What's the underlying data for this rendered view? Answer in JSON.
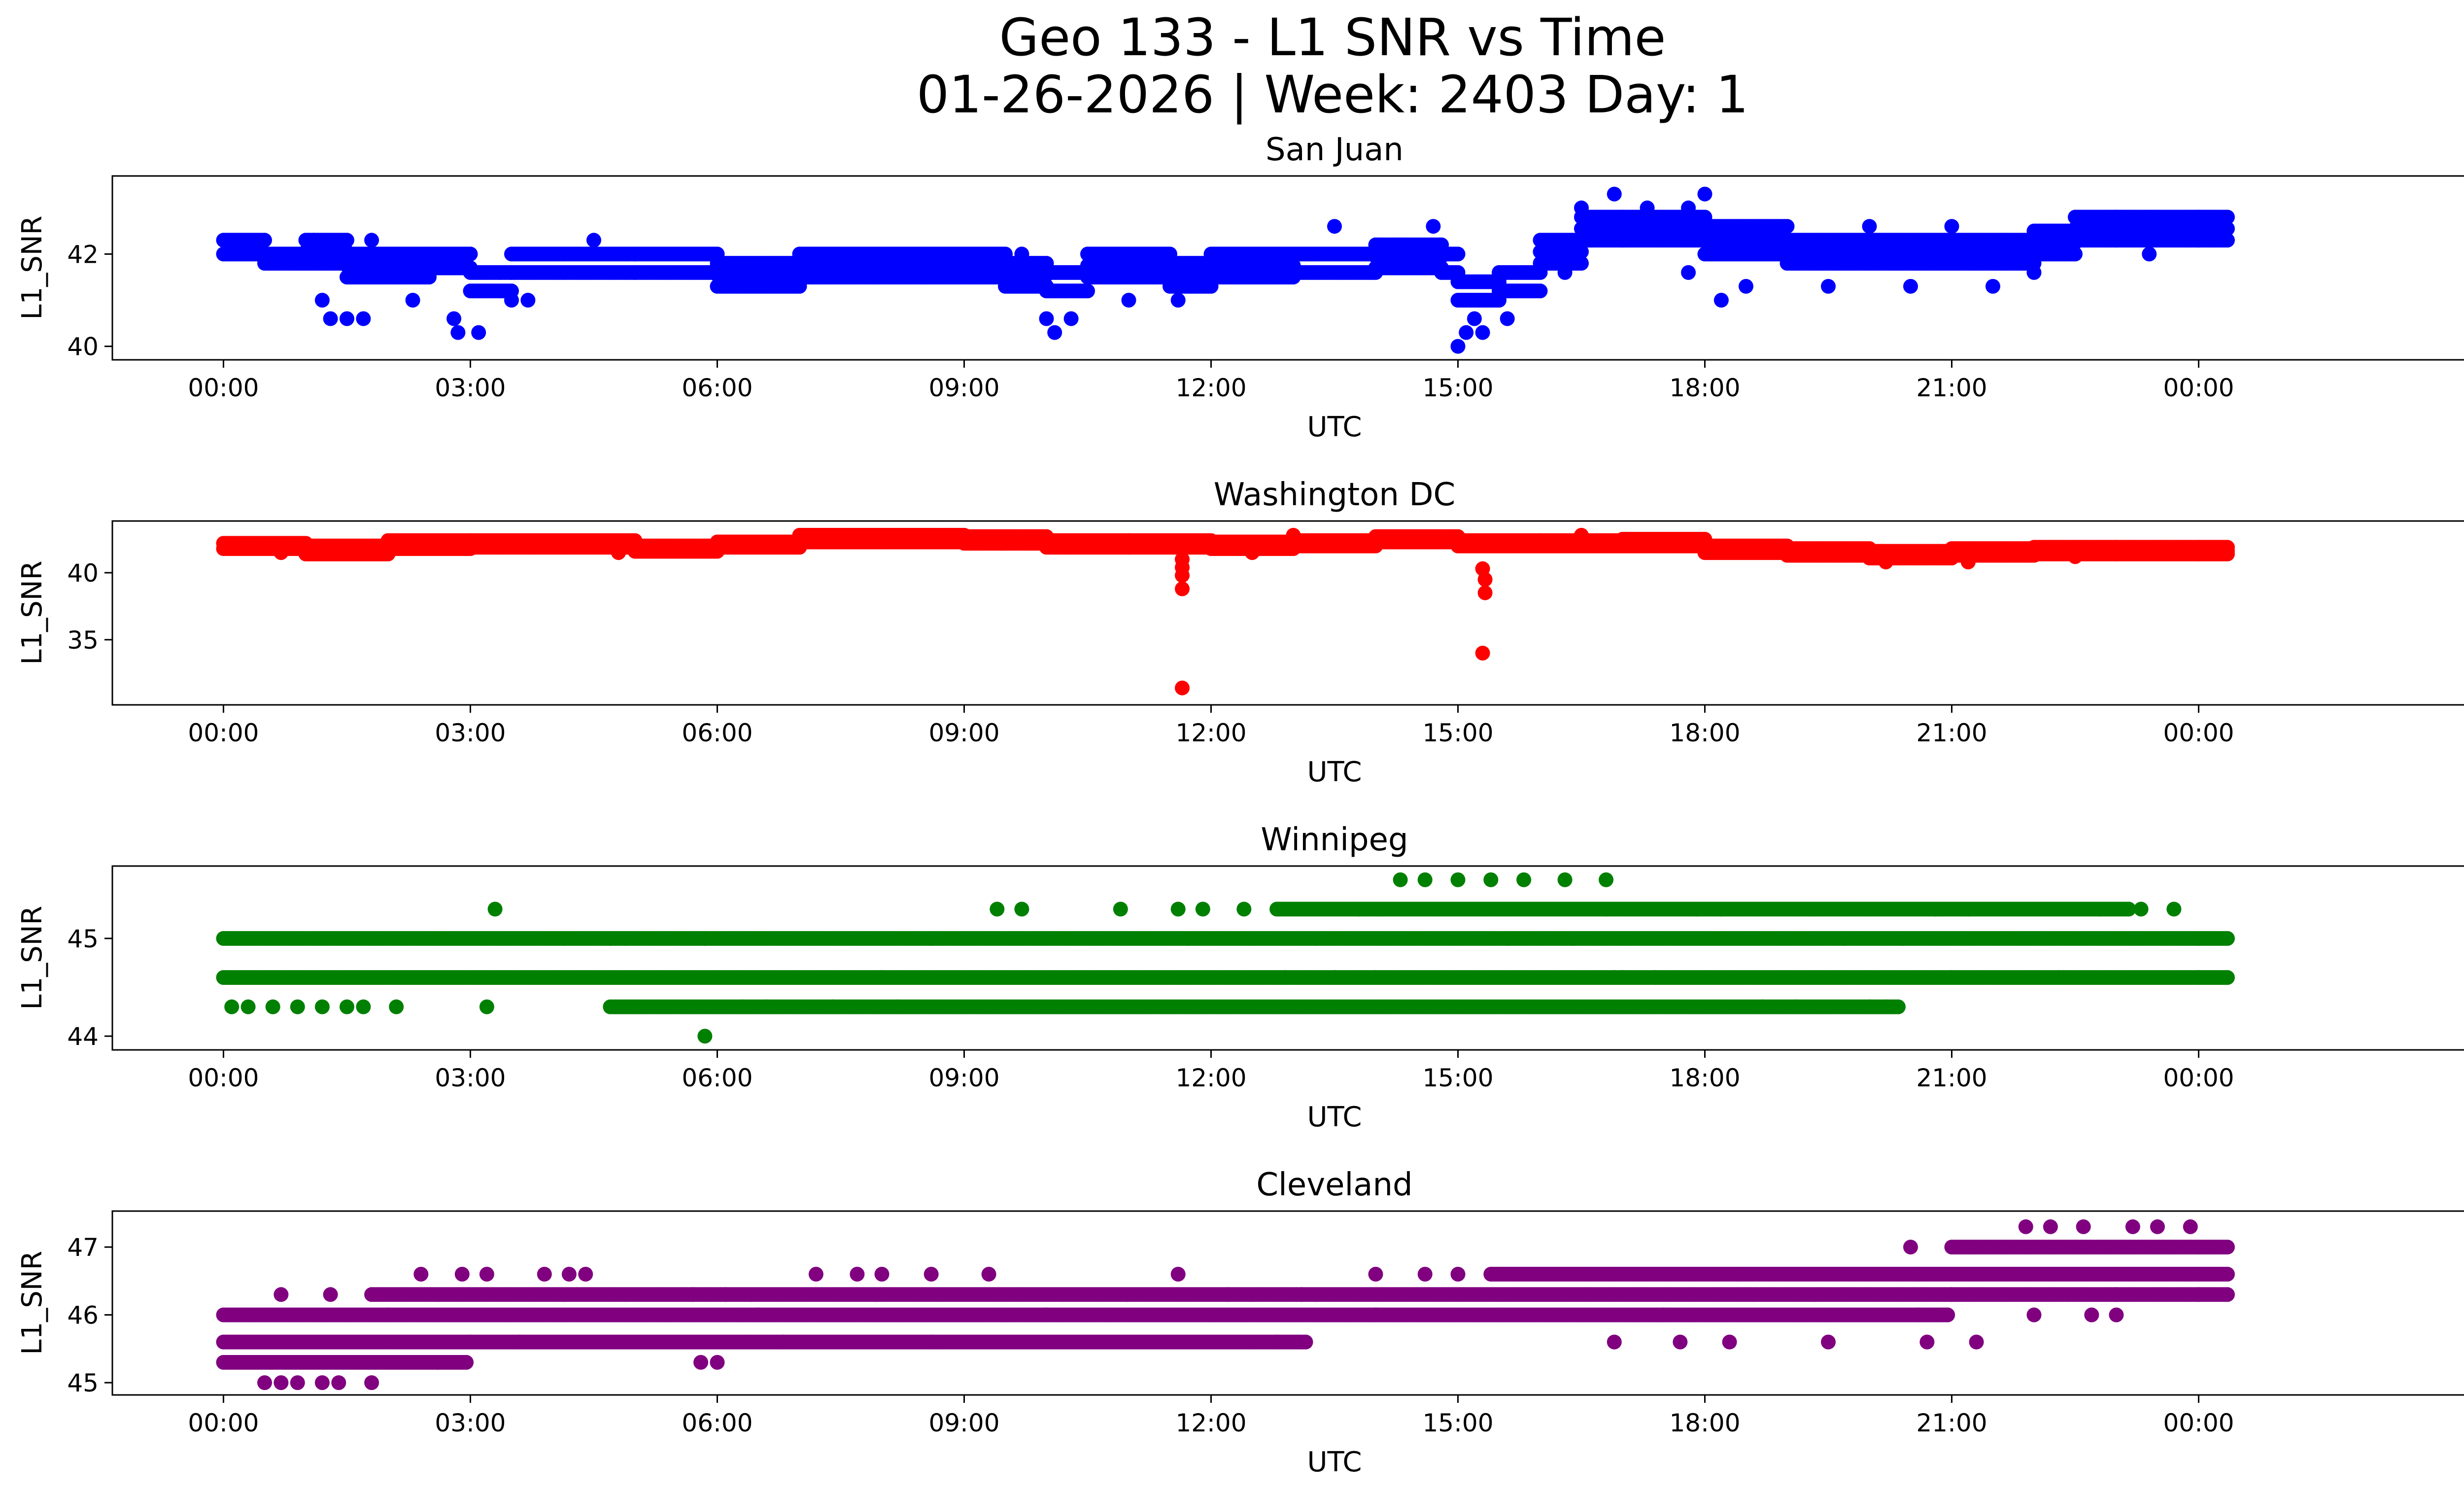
{
  "figure": {
    "title_line1": "Geo 133 - L1 SNR vs Time",
    "title_line2": "01-26-2026 | Week: 2403 Day: 1"
  },
  "chart_data": [
    {
      "type": "scatter",
      "title": "San Juan",
      "xlabel": "UTC",
      "ylabel": "L1_SNR",
      "color": "#0000ff",
      "xlim": [
        -1.35,
        28.35
      ],
      "ylim": [
        39.9,
        43.5
      ],
      "xticks": [
        0,
        3,
        6,
        9,
        12,
        15,
        18,
        21,
        24
      ],
      "xticklabels": [
        "00:00",
        "03:00",
        "06:00",
        "09:00",
        "12:00",
        "15:00",
        "18:00",
        "21:00",
        "00:00"
      ],
      "yticks": [
        40,
        42
      ],
      "yticklabels": [
        "40",
        "42"
      ],
      "segments": [
        [
          0.0,
          42.0,
          42.3
        ],
        [
          0.5,
          41.8,
          42.0
        ],
        [
          1.0,
          41.8,
          42.3
        ],
        [
          1.5,
          41.5,
          42.0
        ],
        [
          2.5,
          41.7,
          42.0
        ],
        [
          3.0,
          41.2,
          41.6
        ],
        [
          3.5,
          41.6,
          42.0
        ],
        [
          5.0,
          41.6,
          42.0
        ],
        [
          6.0,
          41.3,
          41.8
        ],
        [
          7.0,
          41.5,
          42.0
        ],
        [
          8.5,
          41.5,
          42.0
        ],
        [
          9.5,
          41.3,
          41.8
        ],
        [
          10.0,
          41.2,
          41.6
        ],
        [
          10.5,
          41.5,
          42.0
        ],
        [
          11.5,
          41.3,
          41.8
        ],
        [
          12.0,
          41.5,
          42.0
        ],
        [
          13.0,
          41.6,
          42.0
        ],
        [
          14.0,
          41.7,
          42.2
        ],
        [
          14.8,
          41.6,
          42.0
        ],
        [
          15.0,
          41.0,
          41.4
        ],
        [
          15.5,
          41.2,
          41.6
        ],
        [
          16.0,
          41.8,
          42.3
        ],
        [
          16.5,
          42.3,
          42.8
        ],
        [
          17.0,
          42.3,
          42.8
        ],
        [
          18.0,
          42.0,
          42.6
        ],
        [
          19.0,
          41.8,
          42.3
        ],
        [
          20.0,
          41.8,
          42.3
        ],
        [
          21.0,
          41.8,
          42.3
        ],
        [
          22.0,
          42.0,
          42.5
        ],
        [
          22.5,
          42.3,
          42.8
        ],
        [
          23.0,
          42.3,
          42.8
        ],
        [
          24.0,
          42.3,
          42.8
        ]
      ],
      "points": [
        [
          1.2,
          41.0
        ],
        [
          1.3,
          40.6
        ],
        [
          1.5,
          40.6
        ],
        [
          1.7,
          40.6
        ],
        [
          2.3,
          41.0
        ],
        [
          2.8,
          40.6
        ],
        [
          2.85,
          40.3
        ],
        [
          3.1,
          40.3
        ],
        [
          3.5,
          41.0
        ],
        [
          3.7,
          41.0
        ],
        [
          10.0,
          40.6
        ],
        [
          10.1,
          40.3
        ],
        [
          10.3,
          40.6
        ],
        [
          11.0,
          41.0
        ],
        [
          11.6,
          41.0
        ],
        [
          15.0,
          40.0
        ],
        [
          15.1,
          40.3
        ],
        [
          15.2,
          40.6
        ],
        [
          15.3,
          40.3
        ],
        [
          15.6,
          40.6
        ],
        [
          1.1,
          42.3
        ],
        [
          1.8,
          42.3
        ],
        [
          4.5,
          42.3
        ],
        [
          9.7,
          42.0
        ],
        [
          13.5,
          42.6
        ],
        [
          14.7,
          42.6
        ],
        [
          16.5,
          43.0
        ],
        [
          16.9,
          43.3
        ],
        [
          17.3,
          43.0
        ],
        [
          18.0,
          43.3
        ],
        [
          17.8,
          43.0
        ],
        [
          20.0,
          42.6
        ],
        [
          21.0,
          42.6
        ],
        [
          23.4,
          42.0
        ],
        [
          16.3,
          41.6
        ],
        [
          17.8,
          41.6
        ],
        [
          18.2,
          41.0
        ],
        [
          18.5,
          41.3
        ],
        [
          19.5,
          41.3
        ],
        [
          20.5,
          41.3
        ],
        [
          21.5,
          41.3
        ],
        [
          22.0,
          41.6
        ]
      ]
    },
    {
      "type": "scatter",
      "title": "Washington DC",
      "xlabel": "UTC",
      "ylabel": "L1_SNR",
      "color": "#ff0000",
      "xlim": [
        -1.35,
        28.35
      ],
      "ylim": [
        30.8,
        43.2
      ],
      "xticks": [
        0,
        3,
        6,
        9,
        12,
        15,
        18,
        21,
        24
      ],
      "xticklabels": [
        "00:00",
        "03:00",
        "06:00",
        "09:00",
        "12:00",
        "15:00",
        "18:00",
        "21:00",
        "00:00"
      ],
      "yticks": [
        35,
        40
      ],
      "yticklabels": [
        "35",
        "40"
      ],
      "segments": [
        [
          0.0,
          41.8,
          42.2
        ],
        [
          1.0,
          41.4,
          42.0
        ],
        [
          2.0,
          41.8,
          42.4
        ],
        [
          3.0,
          41.9,
          42.4
        ],
        [
          5.0,
          41.6,
          42.0
        ],
        [
          6.0,
          41.9,
          42.3
        ],
        [
          7.0,
          42.3,
          42.8
        ],
        [
          8.0,
          42.3,
          42.8
        ],
        [
          9.0,
          42.2,
          42.7
        ],
        [
          10.0,
          41.9,
          42.4
        ],
        [
          11.0,
          41.9,
          42.4
        ],
        [
          12.0,
          41.8,
          42.3
        ],
        [
          13.0,
          42.0,
          42.4
        ],
        [
          14.0,
          42.3,
          42.7
        ],
        [
          15.0,
          42.0,
          42.4
        ],
        [
          16.0,
          42.0,
          42.4
        ],
        [
          17.0,
          42.0,
          42.5
        ],
        [
          18.0,
          41.5,
          42.0
        ],
        [
          19.0,
          41.3,
          41.8
        ],
        [
          20.0,
          41.1,
          41.6
        ],
        [
          21.0,
          41.3,
          41.8
        ],
        [
          22.0,
          41.4,
          41.9
        ],
        [
          23.0,
          41.4,
          41.9
        ],
        [
          24.0,
          41.4,
          41.9
        ]
      ],
      "points": [
        [
          11.65,
          41.0
        ],
        [
          11.65,
          40.4
        ],
        [
          11.65,
          39.8
        ],
        [
          11.65,
          38.8
        ],
        [
          11.65,
          31.4
        ],
        [
          15.3,
          40.3
        ],
        [
          15.33,
          39.5
        ],
        [
          15.33,
          38.5
        ],
        [
          15.3,
          34.0
        ],
        [
          0.7,
          41.5
        ],
        [
          4.8,
          41.5
        ],
        [
          12.5,
          41.5
        ],
        [
          13.0,
          42.8
        ],
        [
          16.5,
          42.8
        ],
        [
          20.2,
          40.8
        ],
        [
          21.2,
          40.8
        ],
        [
          22.5,
          41.2
        ]
      ]
    },
    {
      "type": "scatter",
      "title": "Winnipeg",
      "xlabel": "UTC",
      "ylabel": "L1_SNR",
      "color": "#008000",
      "xlim": [
        -1.35,
        28.35
      ],
      "ylim": [
        43.95,
        45.65
      ],
      "xticks": [
        0,
        3,
        6,
        9,
        12,
        15,
        18,
        21,
        24
      ],
      "xticklabels": [
        "00:00",
        "03:00",
        "06:00",
        "09:00",
        "12:00",
        "15:00",
        "18:00",
        "21:00",
        "00:00"
      ],
      "yticks": [
        44,
        45
      ],
      "yticklabels": [
        "44",
        "45"
      ],
      "segments": [
        [
          0.0,
          45.0,
          45.0
        ],
        [
          4.7,
          45.0,
          45.0
        ],
        [
          5.85,
          45.0,
          45.0
        ],
        [
          8.6,
          45.0,
          45.0
        ],
        [
          15.6,
          45.0,
          45.0
        ],
        [
          16.4,
          45.0,
          45.0
        ],
        [
          19.7,
          45.0,
          45.0
        ],
        [
          20.4,
          45.0,
          45.0
        ],
        [
          24.0,
          45.0,
          45.0
        ],
        [
          0.0,
          44.6,
          44.6
        ],
        [
          8.0,
          44.6,
          44.6
        ],
        [
          12.9,
          44.6,
          44.6
        ],
        [
          16.9,
          44.6,
          44.6
        ],
        [
          17.4,
          44.6,
          44.6
        ],
        [
          21.0,
          44.6,
          44.6
        ],
        [
          22.3,
          44.6,
          44.6
        ],
        [
          24.0,
          44.6,
          44.6
        ],
        [
          12.8,
          45.3,
          45.3
        ],
        [
          13.8,
          45.3,
          45.3
        ],
        [
          16.8,
          45.3,
          45.3
        ],
        [
          21.2,
          45.3,
          45.3
        ],
        [
          22.8,
          45.3,
          45.3
        ],
        [
          4.7,
          44.3,
          44.3
        ],
        [
          6.3,
          44.3,
          44.3
        ],
        [
          19.1,
          44.3,
          44.3
        ],
        [
          20.0,
          44.3,
          44.3
        ]
      ],
      "points": [
        [
          0.1,
          44.3
        ],
        [
          0.3,
          44.3
        ],
        [
          0.6,
          44.3
        ],
        [
          0.9,
          44.3
        ],
        [
          1.2,
          44.3
        ],
        [
          1.5,
          44.3
        ],
        [
          1.7,
          44.3
        ],
        [
          2.1,
          44.3
        ],
        [
          3.2,
          44.3
        ],
        [
          6.6,
          44.3
        ],
        [
          7.4,
          44.3
        ],
        [
          8.2,
          44.3
        ],
        [
          18.7,
          44.3
        ],
        [
          20.2,
          44.3
        ],
        [
          5.85,
          44.0
        ],
        [
          3.3,
          45.3
        ],
        [
          9.4,
          45.3
        ],
        [
          9.7,
          45.3
        ],
        [
          10.9,
          45.3
        ],
        [
          11.6,
          45.3
        ],
        [
          11.9,
          45.3
        ],
        [
          12.4,
          45.3
        ],
        [
          17.9,
          45.3
        ],
        [
          18.2,
          45.3
        ],
        [
          20.8,
          45.3
        ],
        [
          23.3,
          45.3
        ],
        [
          23.7,
          45.3
        ],
        [
          14.3,
          45.6
        ],
        [
          14.6,
          45.6
        ],
        [
          15.0,
          45.6
        ],
        [
          15.4,
          45.6
        ],
        [
          15.8,
          45.6
        ],
        [
          16.3,
          45.6
        ],
        [
          16.8,
          45.6
        ],
        [
          13.5,
          44.6
        ],
        [
          14.0,
          44.6
        ],
        [
          17.0,
          44.6
        ]
      ]
    },
    {
      "type": "scatter",
      "title": "Cleveland",
      "xlabel": "UTC",
      "ylabel": "L1_SNR",
      "color": "#800080",
      "xlim": [
        -1.35,
        28.35
      ],
      "ylim": [
        44.95,
        47.4
      ],
      "xticks": [
        0,
        3,
        6,
        9,
        12,
        15,
        18,
        21,
        24
      ],
      "xticklabels": [
        "00:00",
        "03:00",
        "06:00",
        "09:00",
        "12:00",
        "15:00",
        "18:00",
        "21:00",
        "00:00"
      ],
      "yticks": [
        45,
        46,
        47
      ],
      "yticklabels": [
        "45",
        "46",
        "47"
      ],
      "segments": [
        [
          0.0,
          46.0,
          46.0
        ],
        [
          2.0,
          46.0,
          46.0
        ],
        [
          6.5,
          46.0,
          46.0
        ],
        [
          10.0,
          46.0,
          46.0
        ],
        [
          14.0,
          46.0,
          46.0
        ],
        [
          17.5,
          46.0,
          46.0
        ],
        [
          20.6,
          46.0,
          46.0
        ],
        [
          0.0,
          45.6,
          45.6
        ],
        [
          3.0,
          45.6,
          45.6
        ],
        [
          3.6,
          45.6,
          45.6
        ],
        [
          6.8,
          45.6,
          45.6
        ],
        [
          8.6,
          45.6,
          45.6
        ],
        [
          12.8,
          45.6,
          45.6
        ],
        [
          0.0,
          45.3,
          45.3
        ],
        [
          2.6,
          45.3,
          45.3
        ],
        [
          1.8,
          46.3,
          46.3
        ],
        [
          5.7,
          46.3,
          46.3
        ],
        [
          6.1,
          46.3,
          46.3
        ],
        [
          12.2,
          46.3,
          46.3
        ],
        [
          13.1,
          46.3,
          46.3
        ],
        [
          21.0,
          46.3,
          46.3
        ],
        [
          23.0,
          46.3,
          46.3
        ],
        [
          24.0,
          46.3,
          46.3
        ],
        [
          15.4,
          46.6,
          46.6
        ],
        [
          18.4,
          46.6,
          46.6
        ],
        [
          20.6,
          46.6,
          46.6
        ],
        [
          24.0,
          46.6,
          46.6
        ],
        [
          21.0,
          47.0,
          47.0
        ],
        [
          24.0,
          47.0,
          47.0
        ]
      ],
      "points": [
        [
          0.5,
          45.0
        ],
        [
          0.7,
          45.0
        ],
        [
          0.9,
          45.0
        ],
        [
          1.2,
          45.0
        ],
        [
          1.4,
          45.0
        ],
        [
          1.8,
          45.0
        ],
        [
          0.7,
          46.3
        ],
        [
          1.3,
          46.3
        ],
        [
          2.4,
          46.6
        ],
        [
          2.9,
          46.6
        ],
        [
          3.2,
          46.6
        ],
        [
          3.9,
          46.6
        ],
        [
          4.2,
          46.6
        ],
        [
          4.4,
          46.6
        ],
        [
          7.2,
          46.6
        ],
        [
          7.7,
          46.6
        ],
        [
          8.0,
          46.6
        ],
        [
          8.6,
          46.6
        ],
        [
          9.3,
          46.6
        ],
        [
          11.6,
          46.6
        ],
        [
          14.0,
          46.6
        ],
        [
          14.6,
          46.6
        ],
        [
          15.0,
          46.6
        ],
        [
          5.8,
          45.3
        ],
        [
          6.0,
          45.3
        ],
        [
          16.9,
          45.6
        ],
        [
          17.7,
          45.6
        ],
        [
          18.3,
          45.6
        ],
        [
          19.5,
          45.6
        ],
        [
          20.7,
          45.6
        ],
        [
          20.5,
          47.0
        ],
        [
          21.3,
          45.6
        ],
        [
          22.0,
          46.0
        ],
        [
          22.7,
          46.0
        ],
        [
          23.0,
          46.0
        ],
        [
          21.9,
          47.3
        ],
        [
          22.2,
          47.3
        ],
        [
          22.6,
          47.3
        ],
        [
          23.2,
          47.3
        ],
        [
          23.5,
          47.3
        ],
        [
          23.9,
          47.3
        ]
      ]
    }
  ]
}
